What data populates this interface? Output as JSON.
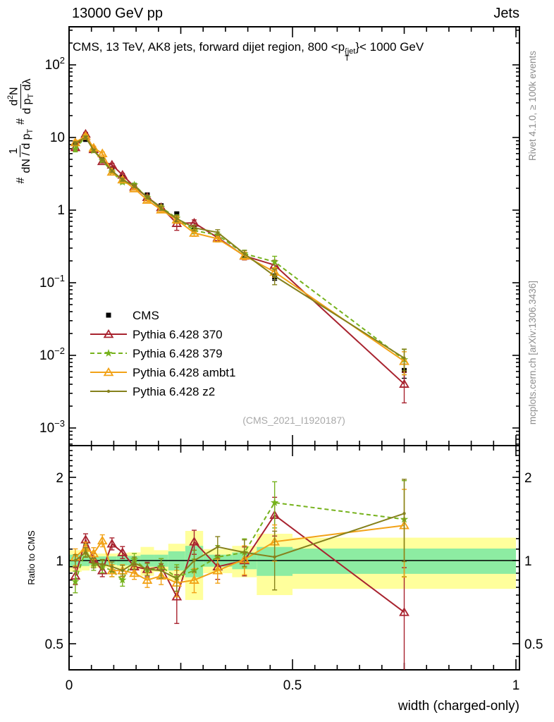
{
  "header": {
    "left": "13000 GeV pp",
    "right": "Jets"
  },
  "title": {
    "prefix": "CMS, 13 TeV, AK8 jets, forward dijet region, 800 <p",
    "sup": "{jet",
    "sub": "T",
    "suffix": "}< 1000 GeV"
  },
  "watermark": "(CMS_2021_I1920187)",
  "side_text_top": "Rivet 4.1.0, ≥ 100k events",
  "side_text_bottom": "mcplots.cern.ch [arXiv:1306.3436]",
  "ratio_ylabel": "Ratio to CMS",
  "xlabel": "width (charged-only)",
  "ylabel_main": {
    "hash1": "#",
    "frac1_num": "1",
    "frac1_den_main": "dN / d p",
    "frac1_den_sub": "T",
    "hash2": "#",
    "frac2_num_main": "d",
    "frac2_num_sup": "2",
    "frac2_num_tail": "N",
    "frac2_den_main": "d p",
    "frac2_den_sub": "T",
    "frac2_den_tail": " dλ"
  },
  "chart_data": {
    "type": "line",
    "xlabel": "width (charged-only)",
    "xlim": [
      0,
      1
    ],
    "ylim_main": [
      0.00057,
      334
    ],
    "ratio_ylim": [
      0.403,
      2.6
    ],
    "x": [
      0.014,
      0.037,
      0.055,
      0.0745,
      0.096,
      0.1195,
      0.146,
      0.175,
      0.206,
      0.241,
      0.28,
      0.3325,
      0.3925,
      0.46,
      0.75
    ],
    "bin_edges": [
      0,
      0.028,
      0.046,
      0.064,
      0.085,
      0.107,
      0.132,
      0.16,
      0.19,
      0.222,
      0.26,
      0.3,
      0.365,
      0.42,
      0.5,
      1.0
    ],
    "series": [
      {
        "name": "CMS",
        "color": "#000000",
        "marker": "square",
        "line": "none",
        "values": [
          8.3,
          9.4,
          6.8,
          5.1,
          3.65,
          2.85,
          2.2,
          1.62,
          1.15,
          0.89,
          0.57,
          0.44,
          0.234,
          0.12,
          0.0062
        ],
        "rel_err": [
          0.04,
          0.03,
          0.03,
          0.03,
          0.03,
          0.03,
          0.035,
          0.04,
          0.045,
          0.05,
          0.05,
          0.06,
          0.07,
          0.1,
          0.22
        ]
      },
      {
        "name": "Pythia 6.428 370",
        "color": "#a8232f",
        "marker": "triangle-open",
        "line": "solid",
        "ratio": [
          0.88,
          1.19,
          1.01,
          0.92,
          1.15,
          1.07,
          0.95,
          0.93,
          0.95,
          0.74,
          1.17,
          0.95,
          1.0,
          1.46,
          0.65
        ],
        "rel_err": [
          0.07,
          0.05,
          0.05,
          0.05,
          0.05,
          0.05,
          0.05,
          0.06,
          0.07,
          0.2,
          0.1,
          0.1,
          0.12,
          0.16,
          0.45
        ]
      },
      {
        "name": "Pythia 6.428 379",
        "color": "#76b21c",
        "marker": "star",
        "line": "dashed",
        "ratio": [
          0.84,
          1.09,
          0.97,
          0.95,
          0.92,
          0.85,
          1.01,
          0.92,
          0.95,
          0.87,
          0.92,
          1.03,
          1.07,
          1.62,
          1.41
        ],
        "rel_err": [
          0.09,
          0.05,
          0.05,
          0.05,
          0.05,
          0.05,
          0.05,
          0.06,
          0.07,
          0.11,
          0.1,
          0.1,
          0.12,
          0.19,
          0.38
        ]
      },
      {
        "name": "Pythia 6.428 ambt1",
        "color": "#f2a217",
        "marker": "triangle-open",
        "line": "solid",
        "ratio": [
          1.03,
          1.11,
          1.06,
          1.18,
          0.92,
          0.92,
          0.9,
          0.85,
          0.88,
          0.83,
          0.85,
          0.92,
          1.01,
          1.17,
          1.34
        ],
        "rel_err": [
          0.07,
          0.05,
          0.05,
          0.05,
          0.05,
          0.05,
          0.05,
          0.06,
          0.07,
          0.11,
          0.1,
          0.1,
          0.12,
          0.15,
          0.35
        ]
      },
      {
        "name": "Pythia 6.428 z2",
        "color": "#85811c",
        "marker": "dot",
        "line": "solid",
        "ratio": [
          1.0,
          1.07,
          0.98,
          0.97,
          0.95,
          0.92,
          0.98,
          0.93,
          0.92,
          0.86,
          1.0,
          1.12,
          1.07,
          1.03,
          1.48
        ],
        "rel_err": [
          0.05,
          0.04,
          0.04,
          0.04,
          0.04,
          0.045,
          0.05,
          0.05,
          0.06,
          0.1,
          0.09,
          0.09,
          0.11,
          0.24,
          0.33
        ]
      }
    ],
    "bands": {
      "yellow_color": "#ffff9c",
      "green_color": "#8deca2",
      "rel_half_yellow": [
        0.09,
        0.08,
        0.06,
        0.06,
        0.06,
        0.065,
        0.07,
        0.12,
        0.09,
        0.15,
        0.28,
        0.1,
        0.13,
        0.25,
        0.21
      ],
      "rel_half_green": [
        0.05,
        0.045,
        0.035,
        0.035,
        0.035,
        0.04,
        0.04,
        0.05,
        0.05,
        0.08,
        0.13,
        0.05,
        0.07,
        0.12,
        0.105
      ]
    },
    "yticks_main": [
      {
        "v": 100,
        "base": "10",
        "exp": "2"
      },
      {
        "v": 10,
        "base": "10",
        "exp": ""
      },
      {
        "v": 1,
        "base": "1",
        "exp": ""
      },
      {
        "v": 0.1,
        "base": "10",
        "exp": "−1"
      },
      {
        "v": 0.01,
        "base": "10",
        "exp": "−2"
      },
      {
        "v": 0.001,
        "base": "10",
        "exp": "−3"
      }
    ],
    "xticks": [
      {
        "v": 0,
        "label": "0"
      },
      {
        "v": 0.5,
        "label": "0.5"
      },
      {
        "v": 1,
        "label": "1"
      }
    ],
    "ratio_ticks": [
      {
        "v": 2,
        "label": "2"
      },
      {
        "v": 1,
        "label": "1"
      },
      {
        "v": 0.5,
        "label": "0.5"
      }
    ],
    "legend_position": "center-left",
    "grid": false
  }
}
